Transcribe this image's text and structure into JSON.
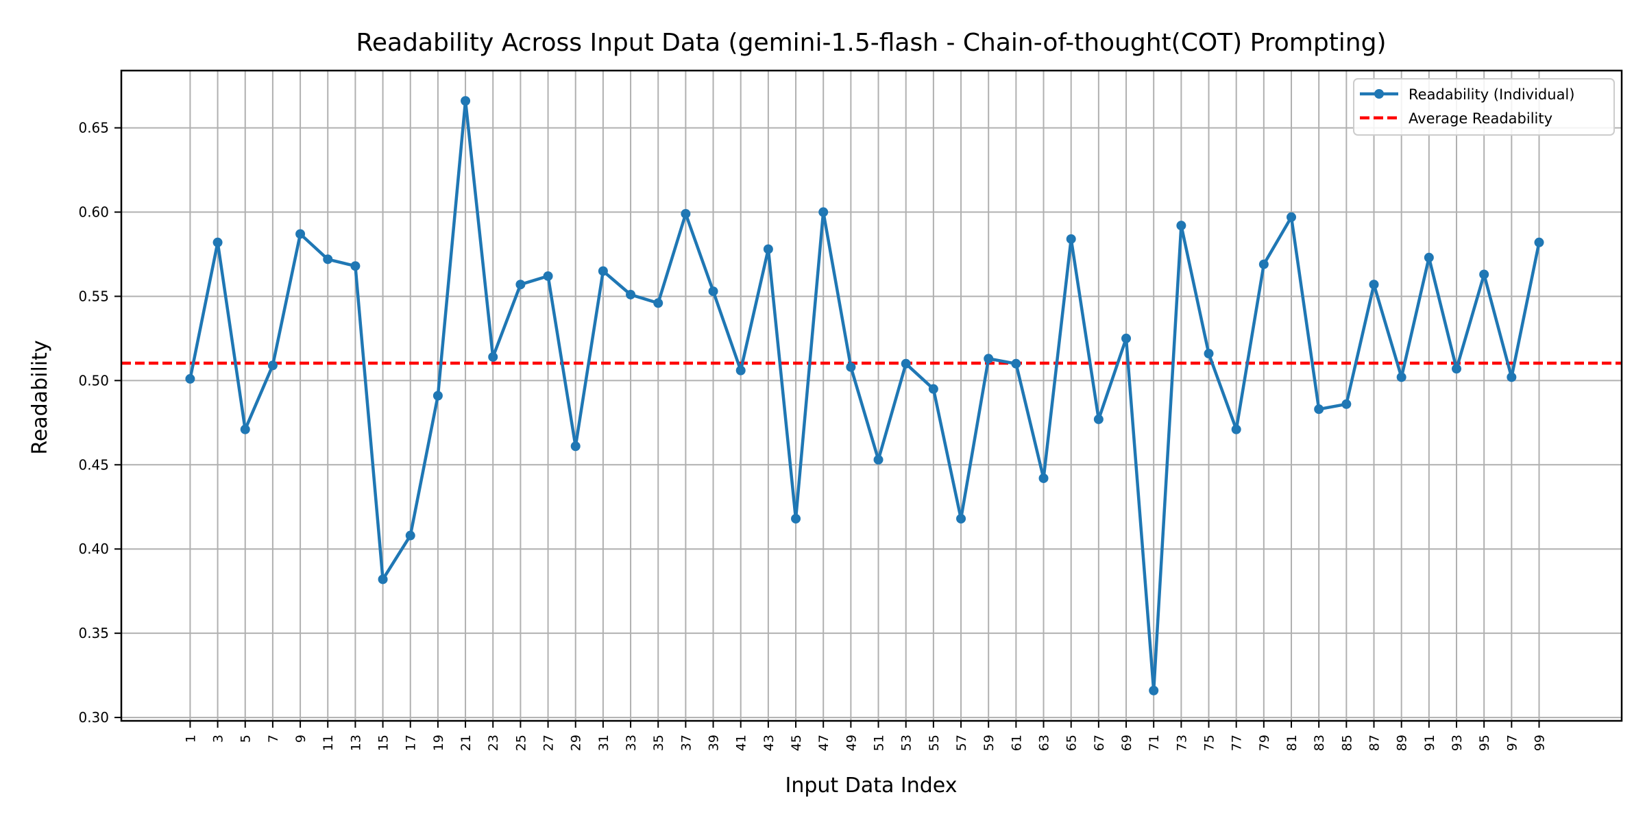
{
  "chart_data": {
    "type": "line",
    "title": "Readability Across Input Data (gemini-1.5-flash - Chain-of-thought(COT) Prompting)",
    "xlabel": "Input Data Index",
    "ylabel": "Readability",
    "xlim": [
      -4,
      105
    ],
    "ylim": [
      0.298,
      0.684
    ],
    "xticks": [
      1,
      3,
      5,
      7,
      9,
      11,
      13,
      15,
      17,
      19,
      21,
      23,
      25,
      27,
      29,
      31,
      33,
      35,
      37,
      39,
      41,
      43,
      45,
      47,
      49,
      51,
      53,
      55,
      57,
      59,
      61,
      63,
      65,
      67,
      69,
      71,
      73,
      75,
      77,
      79,
      81,
      83,
      85,
      87,
      89,
      91,
      93,
      95,
      97,
      99
    ],
    "yticks": [
      0.3,
      0.35,
      0.4,
      0.45,
      0.5,
      0.55,
      0.6,
      0.65
    ],
    "ytick_labels": [
      "0.30",
      "0.35",
      "0.40",
      "0.45",
      "0.50",
      "0.55",
      "0.60",
      "0.65"
    ],
    "grid": true,
    "legend_position": "top-right",
    "colors": {
      "series": "#1f77b4",
      "average": "#ff0000",
      "grid": "#b0b0b0",
      "axes": "#000000"
    },
    "x": [
      1,
      3,
      5,
      7,
      9,
      11,
      13,
      15,
      17,
      19,
      21,
      23,
      25,
      27,
      29,
      31,
      33,
      35,
      37,
      39,
      41,
      43,
      45,
      47,
      49,
      51,
      53,
      55,
      57,
      59,
      61,
      63,
      65,
      67,
      69,
      71,
      73,
      75,
      77,
      79,
      81,
      83,
      85,
      87,
      89,
      91,
      93,
      95,
      97,
      99
    ],
    "series": [
      {
        "name": "Readability (Individual)",
        "style": "line-with-markers",
        "values": [
          0.501,
          0.582,
          0.471,
          0.509,
          0.587,
          0.572,
          0.568,
          0.382,
          0.408,
          0.491,
          0.666,
          0.514,
          0.557,
          0.562,
          0.461,
          0.565,
          0.551,
          0.546,
          0.599,
          0.553,
          0.506,
          0.578,
          0.418,
          0.6,
          0.508,
          0.453,
          0.51,
          0.495,
          0.418,
          0.513,
          0.51,
          0.442,
          0.584,
          0.477,
          0.525,
          0.316,
          0.592,
          0.516,
          0.471,
          0.569,
          0.597,
          0.483,
          0.486,
          0.557,
          0.502,
          0.573,
          0.507,
          0.563,
          0.502,
          0.582
        ]
      },
      {
        "name": "Average Readability",
        "style": "dashed",
        "value": 0.5103
      }
    ]
  }
}
